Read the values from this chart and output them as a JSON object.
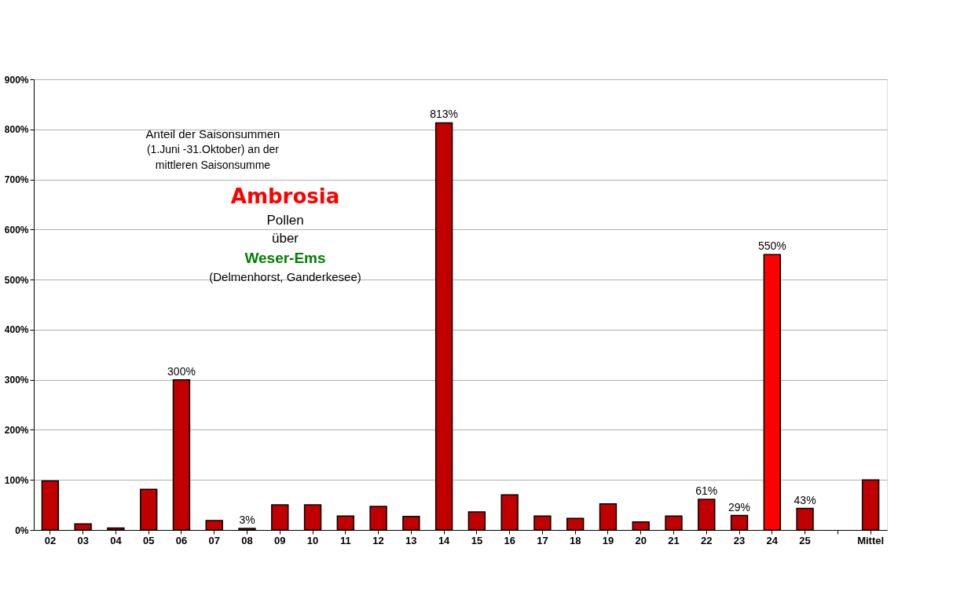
{
  "chart_data": {
    "type": "bar",
    "title": "Ambrosia",
    "categories": [
      "02",
      "03",
      "04",
      "05",
      "06",
      "07",
      "08",
      "09",
      "10",
      "11",
      "12",
      "13",
      "14",
      "15",
      "16",
      "17",
      "18",
      "19",
      "20",
      "21",
      "22",
      "23",
      "24",
      "25",
      null,
      "Mittel"
    ],
    "values": [
      98,
      12,
      4,
      81,
      300,
      19,
      3,
      50,
      50,
      28,
      47,
      27,
      813,
      36,
      70,
      28,
      23,
      52,
      16,
      28,
      61,
      29,
      550,
      43,
      null,
      100
    ],
    "colors": [
      "#c00000",
      "#c00000",
      "#c00000",
      "#c00000",
      "#c00000",
      "#c00000",
      "#c00000",
      "#c00000",
      "#c00000",
      "#c00000",
      "#c00000",
      "#c00000",
      "#c00000",
      "#c00000",
      "#c00000",
      "#c00000",
      "#c00000",
      "#c00000",
      "#c00000",
      "#c00000",
      "#c00000",
      "#c00000",
      "#ff0000",
      "#c00000",
      null,
      "#c00000"
    ],
    "value_labels": [
      null,
      null,
      null,
      null,
      "300%",
      null,
      "3%",
      null,
      null,
      null,
      null,
      null,
      "813%",
      null,
      null,
      null,
      null,
      null,
      null,
      null,
      "61%",
      "29%",
      "550%",
      "43%",
      null,
      null
    ],
    "annotations": [
      "Anteil der Saisonsummen",
      "(1.Juni -31.Oktober) an der",
      "mittleren  Saisonsumme",
      "Pollen",
      "über",
      "Weser-Ems",
      "(Delmenhorst,  Ganderkesee)"
    ],
    "ylim": [
      0,
      900
    ],
    "yticks": [
      {
        "value": 0,
        "label": "0%"
      },
      {
        "value": 100,
        "label": "100%"
      },
      {
        "value": 200,
        "label": "200%"
      },
      {
        "value": 300,
        "label": "300%"
      },
      {
        "value": 400,
        "label": "400%"
      },
      {
        "value": 500,
        "label": "500%"
      },
      {
        "value": 600,
        "label": "600%"
      },
      {
        "value": 700,
        "label": "700%"
      },
      {
        "value": 800,
        "label": "800%"
      },
      {
        "value": 900,
        "label": "900%"
      }
    ],
    "grid": "y"
  }
}
